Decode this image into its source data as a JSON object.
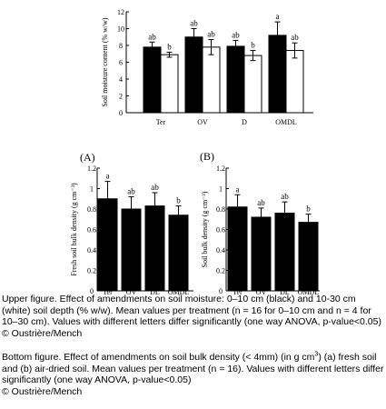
{
  "chart_data": [
    {
      "type": "bar",
      "categories": [
        "Ter",
        "OV",
        "D",
        "OMDL"
      ],
      "ylabel": "Soil moisture content (% w/w)",
      "ylim": [
        0,
        12
      ],
      "yticks": [
        "0",
        "2",
        "4",
        "6",
        "8",
        "10",
        "12"
      ],
      "series": [
        {
          "color": "#000000",
          "values": [
            7.8,
            9.0,
            7.9,
            9.2
          ],
          "errors": [
            0.6,
            1.0,
            0.7,
            1.6
          ],
          "letters": [
            "ab",
            "ab",
            "ab",
            "a"
          ]
        },
        {
          "color": "#ffffff",
          "values": [
            6.9,
            7.8,
            6.8,
            7.4
          ],
          "errors": [
            0.3,
            0.9,
            0.6,
            0.9
          ],
          "letters": [
            "b",
            "ab",
            "b",
            "ab"
          ]
        }
      ]
    },
    {
      "type": "bar",
      "panel_label": "(A)",
      "categories": [
        "Ter",
        "OV",
        "DL",
        "OMDL"
      ],
      "ylabel": "Fresh soil bulk density (g cm⁻³)",
      "ylim": [
        0,
        1.2
      ],
      "yticks": [
        "0",
        "0.2",
        "0.4",
        "0.6",
        "0.8",
        "1",
        "1.2"
      ],
      "series": [
        {
          "color": "#000000",
          "values": [
            0.9,
            0.8,
            0.83,
            0.74
          ],
          "errors": [
            0.17,
            0.12,
            0.13,
            0.09
          ],
          "letters": [
            "a",
            "ab",
            "ab",
            "b"
          ]
        }
      ]
    },
    {
      "type": "bar",
      "panel_label": "(B)",
      "categories": [
        "Ter",
        "OV",
        "DL",
        "OMDL"
      ],
      "ylabel": "Soil bulk density (g cm⁻³)",
      "ylim": [
        0,
        1.2
      ],
      "yticks": [
        "0",
        "0.2",
        "0.4",
        "0.6",
        "0.8",
        "1",
        "1.2"
      ],
      "series": [
        {
          "color": "#000000",
          "values": [
            0.82,
            0.72,
            0.76,
            0.67
          ],
          "errors": [
            0.12,
            0.09,
            0.11,
            0.08
          ],
          "letters": [
            "a",
            "ab",
            "ab",
            "b"
          ]
        }
      ]
    }
  ],
  "captions": {
    "upper": "Upper figure. Effect of amendments on soil moisture: 0–10 cm (black) and 10-30 cm (white) soil depth (% w/w). Mean values per treatment (n = 16 for 0–10 cm and n = 4 for 10–30 cm). Values with different letters differ significantly (one way ANOVA, p-value<0.05) © Oustrière/Mench",
    "lower_before_sup": "Bottom figure. Effect of amendments on soil bulk density (< 4mm) (in g cm",
    "lower_sup": "3",
    "lower_after_sup": ") (a) fresh soil and (b) air-dried soil. Mean values per treatment (n = 16). Values with different letters differ significantly (one way ANOVA, p-value<0.05)",
    "lower_credit": "© Oustrière/Mench"
  }
}
